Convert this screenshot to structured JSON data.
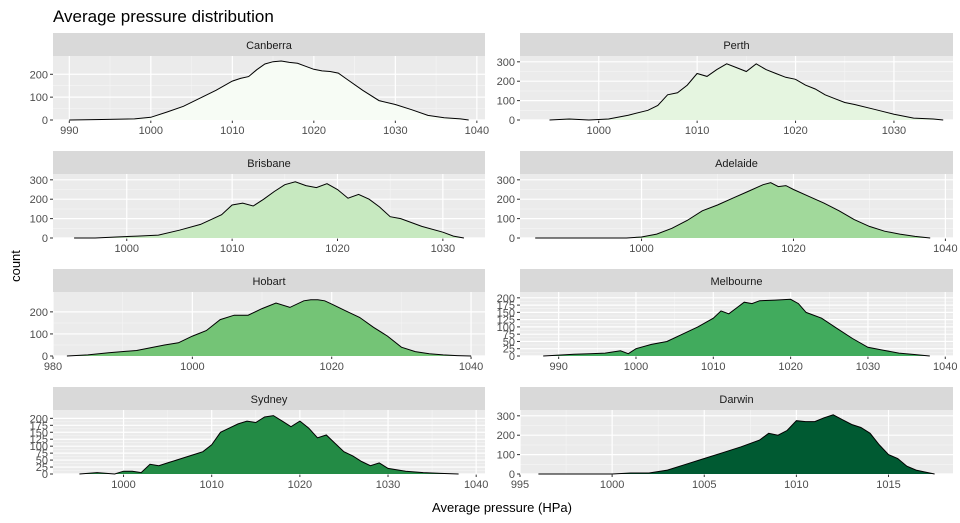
{
  "chart_data": {
    "type": "area",
    "title": "Average pressure distribution",
    "xlabel": "Average pressure (HPa)",
    "ylabel": "count",
    "facet_layout": "4 rows x 2 columns, free x and y scales",
    "grid": true,
    "panels": [
      {
        "name": "Canberra",
        "fill": "#f7fcf5",
        "xlim": [
          988,
          1041
        ],
        "ylim": [
          0,
          280
        ],
        "x_ticks": [
          990,
          1000,
          1010,
          1020,
          1030,
          1040
        ],
        "y_ticks": [
          0,
          100,
          200
        ],
        "x": [
          990,
          994,
          998,
          1000,
          1002,
          1004,
          1006,
          1008,
          1010,
          1011,
          1012,
          1013,
          1014,
          1015,
          1016,
          1017,
          1018,
          1019,
          1020,
          1021,
          1022,
          1023,
          1024,
          1026,
          1028,
          1030,
          1032,
          1034,
          1036,
          1038,
          1039
        ],
        "values": [
          0,
          2,
          5,
          12,
          35,
          60,
          95,
          130,
          170,
          182,
          190,
          220,
          245,
          255,
          258,
          252,
          248,
          235,
          222,
          215,
          212,
          205,
          180,
          130,
          85,
          68,
          45,
          20,
          10,
          5,
          0
        ]
      },
      {
        "name": "Perth",
        "fill": "#e5f5e0",
        "xlim": [
          992,
          1036
        ],
        "ylim": [
          0,
          330
        ],
        "x_ticks": [
          1000,
          1010,
          1020,
          1030
        ],
        "y_ticks": [
          0,
          100,
          200,
          300
        ],
        "x": [
          995,
          997,
          999,
          1001,
          1003,
          1005,
          1006,
          1007,
          1008,
          1009,
          1010,
          1011,
          1012,
          1013,
          1014,
          1015,
          1016,
          1017,
          1018,
          1019,
          1020,
          1021,
          1022,
          1023,
          1024,
          1025,
          1026,
          1028,
          1030,
          1032,
          1034,
          1035
        ],
        "values": [
          0,
          5,
          0,
          5,
          25,
          50,
          75,
          130,
          140,
          180,
          240,
          225,
          260,
          290,
          270,
          250,
          290,
          260,
          240,
          220,
          210,
          180,
          160,
          130,
          110,
          90,
          80,
          55,
          30,
          10,
          5,
          0
        ]
      },
      {
        "name": "Brisbane",
        "fill": "#c7e9c0",
        "xlim": [
          993,
          1034
        ],
        "ylim": [
          0,
          330
        ],
        "x_ticks": [
          1000,
          1010,
          1020,
          1030
        ],
        "y_ticks": [
          0,
          100,
          200,
          300
        ],
        "x": [
          995,
          997,
          999,
          1001,
          1003,
          1005,
          1007,
          1009,
          1010,
          1011,
          1012,
          1013,
          1014,
          1015,
          1016,
          1017,
          1018,
          1019,
          1020,
          1021,
          1022,
          1023,
          1024,
          1025,
          1026,
          1028,
          1030,
          1031,
          1032
        ],
        "values": [
          0,
          0,
          5,
          10,
          15,
          40,
          70,
          120,
          170,
          180,
          165,
          200,
          240,
          275,
          290,
          270,
          260,
          280,
          250,
          205,
          225,
          200,
          160,
          110,
          100,
          60,
          30,
          10,
          0
        ]
      },
      {
        "name": "Adelaide",
        "fill": "#a1d99b",
        "xlim": [
          984,
          1041
        ],
        "ylim": [
          0,
          330
        ],
        "x_ticks": [
          1000,
          1020,
          1040
        ],
        "y_ticks": [
          0,
          100,
          200,
          300
        ],
        "x": [
          986,
          990,
          994,
          998,
          1000,
          1002,
          1004,
          1006,
          1008,
          1010,
          1012,
          1014,
          1016,
          1017,
          1018,
          1019,
          1020,
          1022,
          1024,
          1026,
          1028,
          1030,
          1032,
          1034,
          1036,
          1038
        ],
        "values": [
          0,
          0,
          0,
          0,
          5,
          20,
          50,
          90,
          140,
          170,
          205,
          240,
          275,
          285,
          265,
          270,
          250,
          215,
          180,
          140,
          95,
          60,
          35,
          20,
          8,
          0
        ]
      },
      {
        "name": "Hobart",
        "fill": "#74c476",
        "xlim": [
          980,
          1042
        ],
        "ylim": [
          0,
          290
        ],
        "x_ticks": [
          980,
          1000,
          1020,
          1040
        ],
        "y_ticks": [
          0,
          100,
          200
        ],
        "x": [
          982,
          985,
          988,
          992,
          996,
          998,
          1000,
          1002,
          1004,
          1006,
          1008,
          1010,
          1012,
          1014,
          1016,
          1017,
          1018,
          1019,
          1020,
          1022,
          1024,
          1026,
          1028,
          1030,
          1032,
          1034,
          1036,
          1038,
          1040
        ],
        "values": [
          0,
          5,
          15,
          25,
          50,
          60,
          90,
          115,
          165,
          185,
          185,
          215,
          240,
          220,
          250,
          255,
          255,
          250,
          235,
          205,
          175,
          130,
          90,
          40,
          20,
          10,
          5,
          2,
          0
        ]
      },
      {
        "name": "Melbourne",
        "fill": "#41ab5d",
        "xlim": [
          985,
          1041
        ],
        "ylim": [
          0,
          220
        ],
        "x_ticks": [
          990,
          1000,
          1010,
          1020,
          1030,
          1040
        ],
        "y_ticks": [
          0,
          25,
          50,
          75,
          100,
          125,
          150,
          175,
          200
        ],
        "x": [
          988,
          990,
          992,
          994,
          996,
          998,
          999,
          1000,
          1002,
          1004,
          1006,
          1008,
          1010,
          1011,
          1012,
          1013,
          1014,
          1015,
          1016,
          1018,
          1020,
          1021,
          1022,
          1024,
          1026,
          1028,
          1030,
          1032,
          1034,
          1036,
          1038
        ],
        "values": [
          0,
          3,
          6,
          8,
          10,
          18,
          8,
          25,
          40,
          50,
          75,
          100,
          130,
          155,
          145,
          165,
          185,
          180,
          190,
          192,
          195,
          180,
          150,
          130,
          95,
          60,
          30,
          20,
          10,
          5,
          0
        ]
      },
      {
        "name": "Sydney",
        "fill": "#238b45",
        "xlim": [
          992,
          1041
        ],
        "ylim": [
          0,
          230
        ],
        "x_ticks": [
          1000,
          1010,
          1020,
          1030,
          1040
        ],
        "y_ticks": [
          0,
          25,
          50,
          75,
          100,
          125,
          150,
          175,
          200
        ],
        "x": [
          995,
          997,
          999,
          1000,
          1001,
          1002,
          1003,
          1004,
          1005,
          1006,
          1008,
          1009,
          1010,
          1011,
          1012,
          1013,
          1014,
          1015,
          1016,
          1017,
          1018,
          1019,
          1020,
          1021,
          1022,
          1023,
          1024,
          1025,
          1026,
          1027,
          1028,
          1029,
          1030,
          1032,
          1034,
          1036,
          1038
        ],
        "values": [
          0,
          5,
          0,
          10,
          10,
          5,
          35,
          30,
          40,
          50,
          70,
          80,
          105,
          150,
          165,
          180,
          190,
          185,
          205,
          210,
          190,
          170,
          190,
          165,
          130,
          140,
          110,
          80,
          65,
          45,
          30,
          40,
          20,
          10,
          5,
          2,
          0
        ]
      },
      {
        "name": "Darwin",
        "fill": "#005a32",
        "xlim": [
          995,
          1018.5
        ],
        "ylim": [
          0,
          330
        ],
        "x_ticks": [
          995,
          1000,
          1005,
          1010,
          1015
        ],
        "y_ticks": [
          0,
          100,
          200,
          300
        ],
        "x": [
          996,
          998,
          1000,
          1001,
          1002,
          1003,
          1004,
          1005,
          1006,
          1007,
          1008,
          1008.5,
          1009,
          1009.5,
          1010,
          1010.5,
          1011,
          1011.5,
          1012,
          1012.5,
          1013,
          1013.5,
          1014,
          1014.5,
          1015,
          1015.5,
          1016,
          1016.5,
          1017,
          1017.5
        ],
        "values": [
          0,
          0,
          0,
          5,
          5,
          20,
          50,
          80,
          110,
          140,
          175,
          210,
          200,
          225,
          275,
          270,
          270,
          290,
          305,
          280,
          255,
          240,
          210,
          150,
          100,
          80,
          40,
          20,
          10,
          0
        ]
      }
    ]
  }
}
